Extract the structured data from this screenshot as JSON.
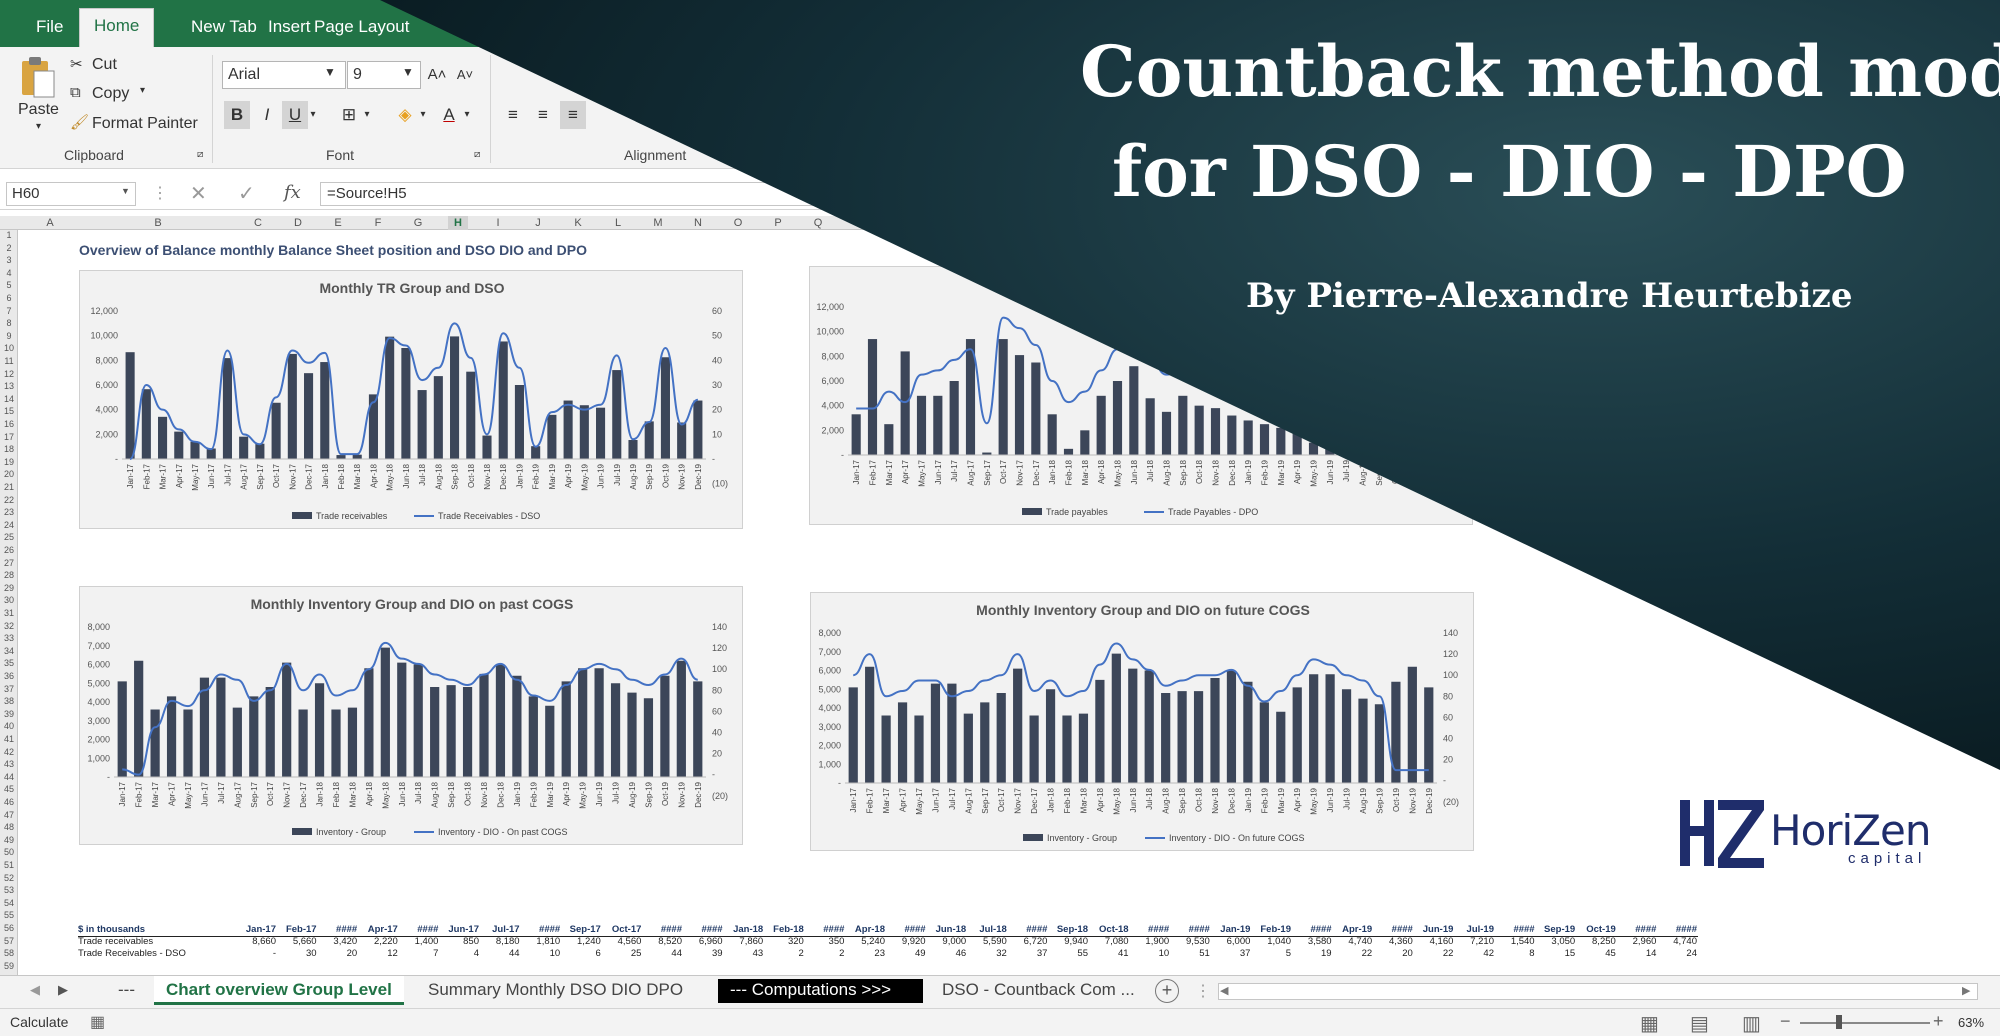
{
  "ribbon": {
    "tabs": [
      "File",
      "Home",
      "New Tab",
      "Insert",
      "Page Layout"
    ],
    "paste": "Paste",
    "cut": "Cut",
    "copy": "Copy",
    "format_painter": "Format Painter",
    "group_clipboard": "Clipboard",
    "group_font": "Font",
    "group_alignment": "Alignment",
    "font_name": "Arial",
    "font_size": "9",
    "bold": "B",
    "italic": "I",
    "underline": "U"
  },
  "formula_bar": {
    "name_box": "H60",
    "fx": "fx",
    "formula": "=Source!H5"
  },
  "columns": [
    "A",
    "B",
    "C",
    "D",
    "E",
    "F",
    "G",
    "H",
    "I",
    "J",
    "K",
    "L",
    "M",
    "N",
    "O",
    "P",
    "Q"
  ],
  "sheet": {
    "title": "Overview of Balance monthly Balance Sheet position and DSO DIO and DPO"
  },
  "months": [
    "Jan-17",
    "Feb-17",
    "Mar-17",
    "Apr-17",
    "May-17",
    "Jun-17",
    "Jul-17",
    "Aug-17",
    "Sep-17",
    "Oct-17",
    "Nov-17",
    "Dec-17",
    "Jan-18",
    "Feb-18",
    "Mar-18",
    "Apr-18",
    "May-18",
    "Jun-18",
    "Jul-18",
    "Aug-18",
    "Sep-18",
    "Oct-18",
    "Nov-18",
    "Dec-18",
    "Jan-19",
    "Feb-19",
    "Mar-19",
    "Apr-19",
    "May-19",
    "Jun-19",
    "Jul-19",
    "Aug-19",
    "Sep-19",
    "Oct-19",
    "Nov-19",
    "Dec-19"
  ],
  "chart_data": [
    {
      "type": "bar",
      "title": "Monthly TR Group and DSO",
      "ylim": [
        0,
        12000
      ],
      "y2lim": [
        -10,
        60
      ],
      "yticks": [
        "12,000",
        "10,000",
        "8,000",
        "6,000",
        "4,000",
        "2,000",
        "-"
      ],
      "y2ticks": [
        "60",
        "50",
        "40",
        "30",
        "20",
        "10",
        "-",
        "(10)"
      ],
      "series": [
        {
          "name": "Trade receivables",
          "type": "bar",
          "values": [
            8660,
            5660,
            3420,
            2220,
            1400,
            850,
            8180,
            1810,
            1240,
            4560,
            8520,
            6960,
            7860,
            320,
            350,
            5240,
            9920,
            9000,
            5590,
            6720,
            9940,
            7080,
            1900,
            9530,
            6000,
            1040,
            3580,
            4740,
            4360,
            4160,
            7210,
            1540,
            3050,
            8250,
            2960,
            4740
          ]
        },
        {
          "name": "Trade Receivables - DSO",
          "type": "line",
          "axis": "right",
          "values": [
            0,
            30,
            20,
            12,
            7,
            4,
            44,
            10,
            6,
            25,
            44,
            39,
            43,
            2,
            2,
            23,
            49,
            46,
            32,
            37,
            55,
            41,
            10,
            51,
            37,
            5,
            19,
            22,
            20,
            22,
            42,
            8,
            15,
            45,
            14,
            24
          ]
        }
      ]
    },
    {
      "type": "bar",
      "title": "",
      "ylim": [
        0,
        12000
      ],
      "yticks": [
        "12,000",
        "10,000",
        "8,000",
        "6,000",
        "4,000",
        "2,000",
        "-"
      ],
      "series": [
        {
          "name": "Trade payables",
          "type": "bar",
          "values": [
            3300,
            9400,
            2500,
            8400,
            4800,
            4800,
            6000,
            9400,
            200,
            9400,
            8100,
            7500,
            3300,
            500,
            2000,
            4800,
            6000,
            7200,
            4600,
            3500,
            4800,
            4000,
            3800,
            3200,
            2800,
            2500,
            2200,
            1800,
            1000,
            500,
            300,
            200,
            0,
            0,
            0,
            0
          ]
        },
        {
          "name": "Trade Payables - DPO",
          "type": "line",
          "axis": "right",
          "values": [
            12,
            12,
            20,
            15,
            28,
            30,
            35,
            40,
            5,
            55,
            50,
            42,
            25,
            15,
            20,
            30,
            40,
            48,
            35,
            28,
            30,
            28,
            25,
            22,
            20,
            18,
            15,
            12,
            10,
            8,
            6,
            5,
            4,
            3,
            2,
            2
          ]
        }
      ]
    },
    {
      "type": "bar",
      "title": "Monthly Inventory Group and DIO on past COGS",
      "ylim": [
        0,
        8000
      ],
      "y2lim": [
        -20,
        140
      ],
      "yticks": [
        "8,000",
        "7,000",
        "6,000",
        "5,000",
        "4,000",
        "3,000",
        "2,000",
        "1,000",
        "-"
      ],
      "y2ticks": [
        "140",
        "120",
        "100",
        "80",
        "60",
        "40",
        "20",
        "-",
        "(20)"
      ],
      "series": [
        {
          "name": "Inventory - Group",
          "type": "bar",
          "values": [
            5100,
            6200,
            3600,
            4300,
            3600,
            5300,
            5300,
            3700,
            4300,
            4800,
            6100,
            3600,
            5000,
            3600,
            3700,
            5800,
            6900,
            6100,
            6000,
            4800,
            4900,
            4800,
            5500,
            6000,
            5400,
            4300,
            3800,
            5100,
            5800,
            5800,
            5000,
            4500,
            4200,
            5400,
            6200,
            5100
          ]
        },
        {
          "name": "Inventory - DIO - On past COGS",
          "type": "line",
          "axis": "right",
          "values": [
            5,
            0,
            45,
            70,
            65,
            80,
            95,
            90,
            70,
            80,
            105,
            80,
            95,
            75,
            80,
            100,
            125,
            110,
            105,
            95,
            90,
            85,
            95,
            105,
            90,
            75,
            70,
            85,
            100,
            105,
            100,
            90,
            85,
            95,
            110,
            90
          ]
        }
      ]
    },
    {
      "type": "bar",
      "title": "Monthly Inventory Group and DIO on future COGS",
      "ylim": [
        0,
        8000
      ],
      "y2lim": [
        -20,
        140
      ],
      "yticks": [
        "8,000",
        "7,000",
        "6,000",
        "5,000",
        "4,000",
        "3,000",
        "2,000",
        "1,000",
        "-"
      ],
      "y2ticks": [
        "140",
        "120",
        "100",
        "80",
        "60",
        "40",
        "20",
        "-",
        "(20)"
      ],
      "series": [
        {
          "name": "Inventory - Group",
          "type": "bar",
          "values": [
            5100,
            6200,
            3600,
            4300,
            3600,
            5300,
            5300,
            3700,
            4300,
            4800,
            6100,
            3600,
            5000,
            3600,
            3700,
            5500,
            6900,
            6100,
            6000,
            4800,
            4900,
            4900,
            5600,
            6000,
            5400,
            4300,
            3800,
            5100,
            5800,
            5800,
            5000,
            4500,
            4200,
            5400,
            6200,
            5100
          ]
        },
        {
          "name": "Inventory - DIO - On future COGS",
          "type": "line",
          "axis": "right",
          "values": [
            100,
            120,
            80,
            85,
            95,
            95,
            80,
            85,
            95,
            100,
            120,
            85,
            95,
            80,
            85,
            110,
            130,
            115,
            105,
            90,
            95,
            100,
            100,
            105,
            90,
            75,
            85,
            100,
            115,
            110,
            100,
            95,
            80,
            10,
            10,
            10
          ]
        }
      ]
    }
  ],
  "table": {
    "header_label": "$ in thousands",
    "header": [
      "Jan-17",
      "Feb-17",
      "####",
      "Apr-17",
      "####",
      "Jun-17",
      "Jul-17",
      "####",
      "Sep-17",
      "Oct-17",
      "####",
      "####",
      "Jan-18",
      "Feb-18",
      "####",
      "Apr-18",
      "####",
      "Jun-18",
      "Jul-18",
      "####",
      "Sep-18",
      "Oct-18",
      "####",
      "####",
      "Jan-19",
      "Feb-19",
      "####",
      "Apr-19",
      "####",
      "Jun-19",
      "Jul-19",
      "####",
      "Sep-19",
      "Oct-19",
      "####",
      "####"
    ],
    "rows": [
      {
        "label": "Trade receivables",
        "values": [
          "8,660",
          "5,660",
          "3,420",
          "2,220",
          "1,400",
          "850",
          "8,180",
          "1,810",
          "1,240",
          "4,560",
          "8,520",
          "6,960",
          "7,860",
          "320",
          "350",
          "5,240",
          "9,920",
          "9,000",
          "5,590",
          "6,720",
          "9,940",
          "7,080",
          "1,900",
          "9,530",
          "6,000",
          "1,040",
          "3,580",
          "4,740",
          "4,360",
          "4,160",
          "7,210",
          "1,540",
          "3,050",
          "8,250",
          "2,960",
          "4,740"
        ]
      },
      {
        "label": "Trade Receivables - DSO",
        "values": [
          "-",
          "30",
          "20",
          "12",
          "7",
          "4",
          "44",
          "10",
          "6",
          "25",
          "44",
          "39",
          "43",
          "2",
          "2",
          "23",
          "49",
          "46",
          "32",
          "37",
          "55",
          "41",
          "10",
          "51",
          "37",
          "5",
          "19",
          "22",
          "20",
          "22",
          "42",
          "8",
          "15",
          "45",
          "14",
          "24"
        ]
      }
    ]
  },
  "sheet_tabs": [
    "---",
    "Chart overview Group Level",
    "Summary Monthly DSO DIO DPO",
    "--- Computations >>>",
    "DSO - Countback Com ..."
  ],
  "status": {
    "mode": "Calculate",
    "zoom": "63%"
  },
  "overlay": {
    "title_line1": "Countback method model",
    "title_line2": "for DSO - DIO - DPO",
    "byline": "By Pierre-Alexandre Heurtebize",
    "logo_main": "HoriZen",
    "logo_sub": "capital",
    "logo_mark": "HZ"
  },
  "colors": {
    "excel_green": "#217346",
    "bar": "#3c4659",
    "line": "#4472c4",
    "overlay": "#132e37"
  }
}
